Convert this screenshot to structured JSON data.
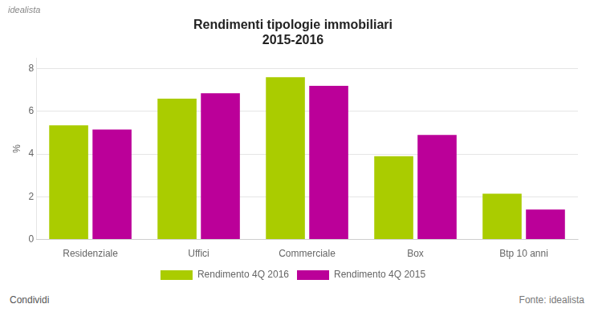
{
  "chart_data": {
    "type": "bar",
    "title": [
      "Rendimenti tipologie immobiliari",
      "2015-2016"
    ],
    "categories": [
      "Residenziale",
      "Uffici",
      "Commerciale",
      "Box",
      "Btp 10 anni"
    ],
    "series": [
      {
        "name": "Rendimento 4Q 2016",
        "color": "#AACC00",
        "values": [
          5.35,
          6.6,
          7.6,
          3.9,
          2.15
        ]
      },
      {
        "name": "Rendimento 4Q 2015",
        "color": "#BB0099",
        "values": [
          5.15,
          6.85,
          7.2,
          4.9,
          1.4
        ]
      }
    ],
    "ylabel": "%",
    "ylim": [
      0,
      8.5
    ],
    "yticks": [
      0,
      2,
      4,
      6,
      8
    ],
    "grid": "y",
    "legend": "bottom",
    "annotations": [
      "idealista",
      "Condividi",
      "Fonte: idealista"
    ]
  }
}
